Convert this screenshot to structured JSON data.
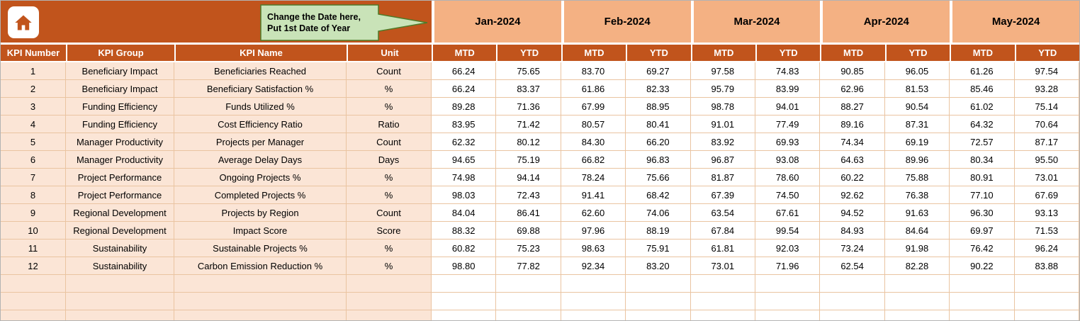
{
  "callout": {
    "line1": "Change the Date here,",
    "line2": "Put 1st Date of Year"
  },
  "months": [
    "Jan-2024",
    "Feb-2024",
    "Mar-2024",
    "Apr-2024",
    "May-2024"
  ],
  "column_headers": [
    "KPI Number",
    "KPI Group",
    "KPI Name",
    "Unit"
  ],
  "period_headers": {
    "mtd": "MTD",
    "ytd": "YTD"
  },
  "rows": [
    {
      "num": "1",
      "group": "Beneficiary Impact",
      "name": "Beneficiaries Reached",
      "unit": "Count",
      "values": [
        "66.24",
        "75.65",
        "83.70",
        "69.27",
        "97.58",
        "74.83",
        "90.85",
        "96.05",
        "61.26",
        "97.54"
      ]
    },
    {
      "num": "2",
      "group": "Beneficiary Impact",
      "name": "Beneficiary Satisfaction %",
      "unit": "%",
      "values": [
        "66.24",
        "83.37",
        "61.86",
        "82.33",
        "95.79",
        "83.99",
        "62.96",
        "81.53",
        "85.46",
        "93.28"
      ]
    },
    {
      "num": "3",
      "group": "Funding Efficiency",
      "name": "Funds Utilized %",
      "unit": "%",
      "values": [
        "89.28",
        "71.36",
        "67.99",
        "88.95",
        "98.78",
        "94.01",
        "88.27",
        "90.54",
        "61.02",
        "75.14"
      ]
    },
    {
      "num": "4",
      "group": "Funding Efficiency",
      "name": "Cost Efficiency Ratio",
      "unit": "Ratio",
      "values": [
        "83.95",
        "71.42",
        "80.57",
        "80.41",
        "91.01",
        "77.49",
        "89.16",
        "87.31",
        "64.32",
        "70.64"
      ]
    },
    {
      "num": "5",
      "group": "Manager Productivity",
      "name": "Projects per Manager",
      "unit": "Count",
      "values": [
        "62.32",
        "80.12",
        "84.30",
        "66.20",
        "83.92",
        "69.93",
        "74.34",
        "69.19",
        "72.57",
        "87.17"
      ]
    },
    {
      "num": "6",
      "group": "Manager Productivity",
      "name": "Average Delay Days",
      "unit": "Days",
      "values": [
        "94.65",
        "75.19",
        "66.82",
        "96.83",
        "96.87",
        "93.08",
        "64.63",
        "89.96",
        "80.34",
        "95.50"
      ]
    },
    {
      "num": "7",
      "group": "Project Performance",
      "name": "Ongoing Projects %",
      "unit": "%",
      "values": [
        "74.98",
        "94.14",
        "78.24",
        "75.66",
        "81.87",
        "78.60",
        "60.22",
        "75.88",
        "80.91",
        "73.01"
      ]
    },
    {
      "num": "8",
      "group": "Project Performance",
      "name": "Completed Projects %",
      "unit": "%",
      "values": [
        "98.03",
        "72.43",
        "91.41",
        "68.42",
        "67.39",
        "74.50",
        "92.62",
        "76.38",
        "77.10",
        "67.69"
      ]
    },
    {
      "num": "9",
      "group": "Regional Development",
      "name": "Projects by Region",
      "unit": "Count",
      "values": [
        "84.04",
        "86.41",
        "62.60",
        "74.06",
        "63.54",
        "67.61",
        "94.52",
        "91.63",
        "96.30",
        "93.13"
      ]
    },
    {
      "num": "10",
      "group": "Regional Development",
      "name": "Impact Score",
      "unit": "Score",
      "values": [
        "88.32",
        "69.88",
        "97.96",
        "88.19",
        "67.84",
        "99.54",
        "84.93",
        "84.64",
        "69.97",
        "71.53"
      ]
    },
    {
      "num": "11",
      "group": "Sustainability",
      "name": "Sustainable Projects %",
      "unit": "%",
      "values": [
        "60.82",
        "75.23",
        "98.63",
        "75.91",
        "61.81",
        "92.03",
        "73.24",
        "91.98",
        "76.42",
        "96.24"
      ]
    },
    {
      "num": "12",
      "group": "Sustainability",
      "name": "Carbon Emission Reduction %",
      "unit": "%",
      "values": [
        "98.80",
        "77.82",
        "92.34",
        "83.20",
        "73.01",
        "71.96",
        "62.54",
        "82.28",
        "90.22",
        "83.88"
      ]
    }
  ],
  "empty_rows": 3,
  "icons": {
    "home": "home-icon",
    "callout_pointer": "right-arrow-bubble"
  },
  "colors": {
    "header_dark": "#C1541C",
    "header_light": "#F4B183",
    "row_label_bg": "#FBE5D6",
    "grid_line": "#EAC4A1",
    "callout_fill": "#C9E3B8",
    "callout_border": "#4F7A28"
  }
}
